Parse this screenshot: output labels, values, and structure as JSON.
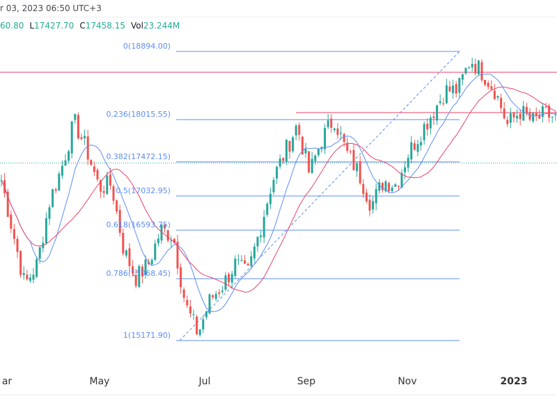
{
  "header": {
    "datetime": "r 03, 2023 06:50 UTC+3",
    "high_value": "60.80",
    "low_label": "L",
    "low_value": "17427.70",
    "close_label": "C",
    "close_value": "17458.15",
    "vol_label": "Vol",
    "vol_value": "23.244M"
  },
  "chart_data": {
    "type": "candlestick",
    "title": "",
    "x_ticks": [
      "ar",
      "May",
      "Jul",
      "Sep",
      "Nov",
      "2023"
    ],
    "ylim": [
      14500,
      19500
    ],
    "close_path": [
      17319,
      16600,
      15888,
      16156,
      16962,
      17409,
      17990,
      17632,
      17140,
      17185,
      16335,
      15977,
      16156,
      16604,
      16514,
      15620,
      15262,
      15709,
      15888,
      16156,
      16022,
      16604,
      17230,
      17588,
      17946,
      17320,
      17767,
      18035,
      17588,
      17320,
      16917,
      17230,
      17185,
      17588,
      17856,
      18125,
      18393,
      18393,
      18796,
      18617,
      18393,
      17946,
      18125,
      17990,
      18080,
      18035
    ],
    "fibonacci": {
      "levels": [
        {
          "ratio": 0,
          "label": "0(18894.00)",
          "price": 18894.0
        },
        {
          "ratio": 0.236,
          "label": "0.236(18015.55)",
          "price": 18015.55
        },
        {
          "ratio": 0.382,
          "label": "0.382(17472.15)",
          "price": 17472.15
        },
        {
          "ratio": 0.5,
          "label": "0.5(17032.95)",
          "price": 17032.95
        },
        {
          "ratio": 0.618,
          "label": "0.618(16593.75)",
          "price": 16593.75
        },
        {
          "ratio": 0.786,
          "label": "0.786(15968.45)",
          "price": 15968.45
        },
        {
          "ratio": 1,
          "label": "1(15171.90)",
          "price": 15171.9
        }
      ]
    },
    "resistance_lines": [
      18626,
      18107
    ],
    "current_price": 17458.15,
    "colors": {
      "up": "#26a69a",
      "down": "#ef5350",
      "fib": "#5b8cf5",
      "ma_fast": "#5b8cf5",
      "ma_slow": "#e8416b",
      "resistance": "#e8416b",
      "price_line": "#26a69a"
    }
  }
}
